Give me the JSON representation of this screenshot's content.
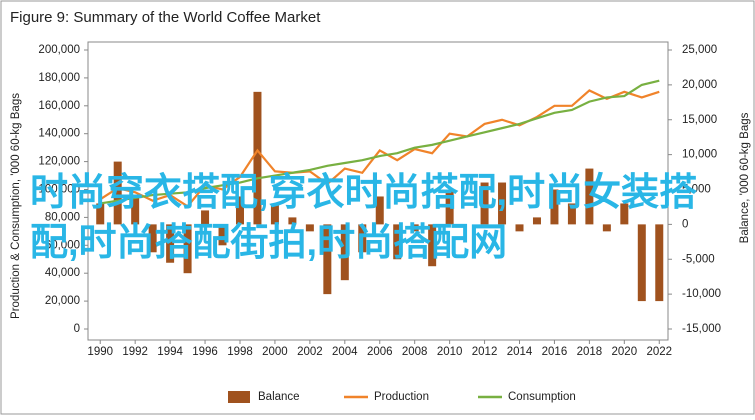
{
  "chart_data": {
    "type": "combo",
    "title": "Figure 9: Summary of the World Coffee Market",
    "ylabel": "Production & Consumption, '000 60-kg Bags",
    "y2label": "Balance, '000 60-kg Bags",
    "watermark": "时尚穿衣搭配,穿衣时尚搭配,时尚女装搭配,时尚搭配街拍,时尚搭配网",
    "watermark_color": "#29b6e6",
    "x": [
      1990,
      1991,
      1992,
      1993,
      1994,
      1995,
      1996,
      1997,
      1998,
      1999,
      2000,
      2001,
      2002,
      2003,
      2004,
      2005,
      2006,
      2007,
      2008,
      2009,
      2010,
      2011,
      2012,
      2013,
      2014,
      2015,
      2016,
      2017,
      2018,
      2019,
      2020,
      2021,
      2022
    ],
    "xlim": [
      1989.3,
      2022.5
    ],
    "xticks": [
      1990,
      1992,
      1994,
      1996,
      1998,
      2000,
      2002,
      2004,
      2006,
      2008,
      2010,
      2012,
      2014,
      2016,
      2018,
      2020,
      2022
    ],
    "ylim": [
      0,
      200000
    ],
    "yticks": [
      0,
      {
        "value": 20000,
        "label": "20,000"
      },
      {
        "value": 40000,
        "label": "40,000"
      },
      {
        "value": 60000,
        "label": "60,000"
      },
      {
        "value": 80000,
        "label": "80,000"
      },
      {
        "value": 100000,
        "label": "100,000"
      },
      {
        "value": 120000,
        "label": "120,000"
      },
      {
        "value": 140000,
        "label": "140,000"
      },
      {
        "value": 160000,
        "label": "160,000"
      },
      {
        "value": 180000,
        "label": "180,000"
      },
      {
        "value": 200000,
        "label": "200,000"
      }
    ],
    "y2lim": [
      -15000,
      25000
    ],
    "y2ticks": [
      {
        "value": -15000,
        "label": "-15,000"
      },
      {
        "value": -10000,
        "label": "-10,000"
      },
      {
        "value": -5000,
        "label": "-5,000"
      },
      0,
      {
        "value": 5000,
        "label": "5,000"
      },
      {
        "value": 10000,
        "label": "10,000"
      },
      {
        "value": 15000,
        "label": "15,000"
      },
      {
        "value": 20000,
        "label": "20,000"
      },
      {
        "value": 25000,
        "label": "25,000"
      }
    ],
    "series": [
      {
        "name": "Balance",
        "type": "bar",
        "axis": "y2",
        "color": "#a0521e",
        "values": [
          3000,
          9000,
          4000,
          -4000,
          -5500,
          -7000,
          2000,
          -3000,
          4000,
          19000,
          3000,
          1000,
          -1000,
          -10000,
          -8000,
          -4000,
          4000,
          -5000,
          -1000,
          -6000,
          5000,
          0,
          6000,
          6000,
          -1000,
          1000,
          5000,
          3000,
          8000,
          -1000,
          3000,
          -11000,
          -11000
        ]
      },
      {
        "name": "Production",
        "type": "line",
        "color": "#f0832a",
        "values": [
          93000,
          101000,
          98000,
          92000,
          96000,
          88000,
          103000,
          100000,
          109000,
          128000,
          113000,
          112000,
          113000,
          104000,
          115000,
          112000,
          128000,
          121000,
          129000,
          126000,
          140000,
          138000,
          147000,
          150000,
          146000,
          152000,
          160000,
          160000,
          171000,
          165000,
          170000,
          166000,
          170000
        ]
      },
      {
        "name": "Consumption",
        "type": "line",
        "color": "#78b041",
        "values": [
          90000,
          92000,
          94000,
          96000,
          97000,
          98000,
          101000,
          103000,
          105000,
          108000,
          110000,
          112000,
          114000,
          117000,
          119000,
          121000,
          124000,
          126000,
          130000,
          132000,
          135000,
          138000,
          141000,
          144000,
          147000,
          151000,
          155000,
          157000,
          163000,
          166000,
          167000,
          175000,
          178000
        ]
      }
    ]
  }
}
